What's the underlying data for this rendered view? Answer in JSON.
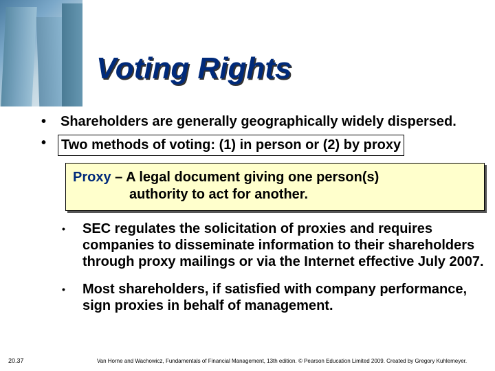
{
  "title": "Voting Rights",
  "bullets": {
    "b1": "Shareholders are generally geographically widely dispersed.",
    "b2": "Two methods of voting:  (1) in person or (2) by proxy"
  },
  "proxy": {
    "term": "Proxy",
    "sep": " – ",
    "def_line1": "A legal document giving one person(s)",
    "def_line2": "authority to act for another."
  },
  "subbullets": {
    "s1": "SEC regulates the solicitation of proxies and requires companies to disseminate information to their shareholders through proxy mailings or via the Internet effective July 2007.",
    "s2": "Most shareholders, if satisfied with company performance, sign proxies in behalf of management."
  },
  "slide_number": "20.37",
  "footer": "Van Horne and Wachowicz, Fundamentals of Financial Management, 13th edition. © Pearson Education Limited 2009. Created by Gregory Kuhlemeyer.",
  "colors": {
    "title_color": "#002a7a",
    "proxy_bg": "#ffffcc",
    "text_color": "#000000"
  }
}
